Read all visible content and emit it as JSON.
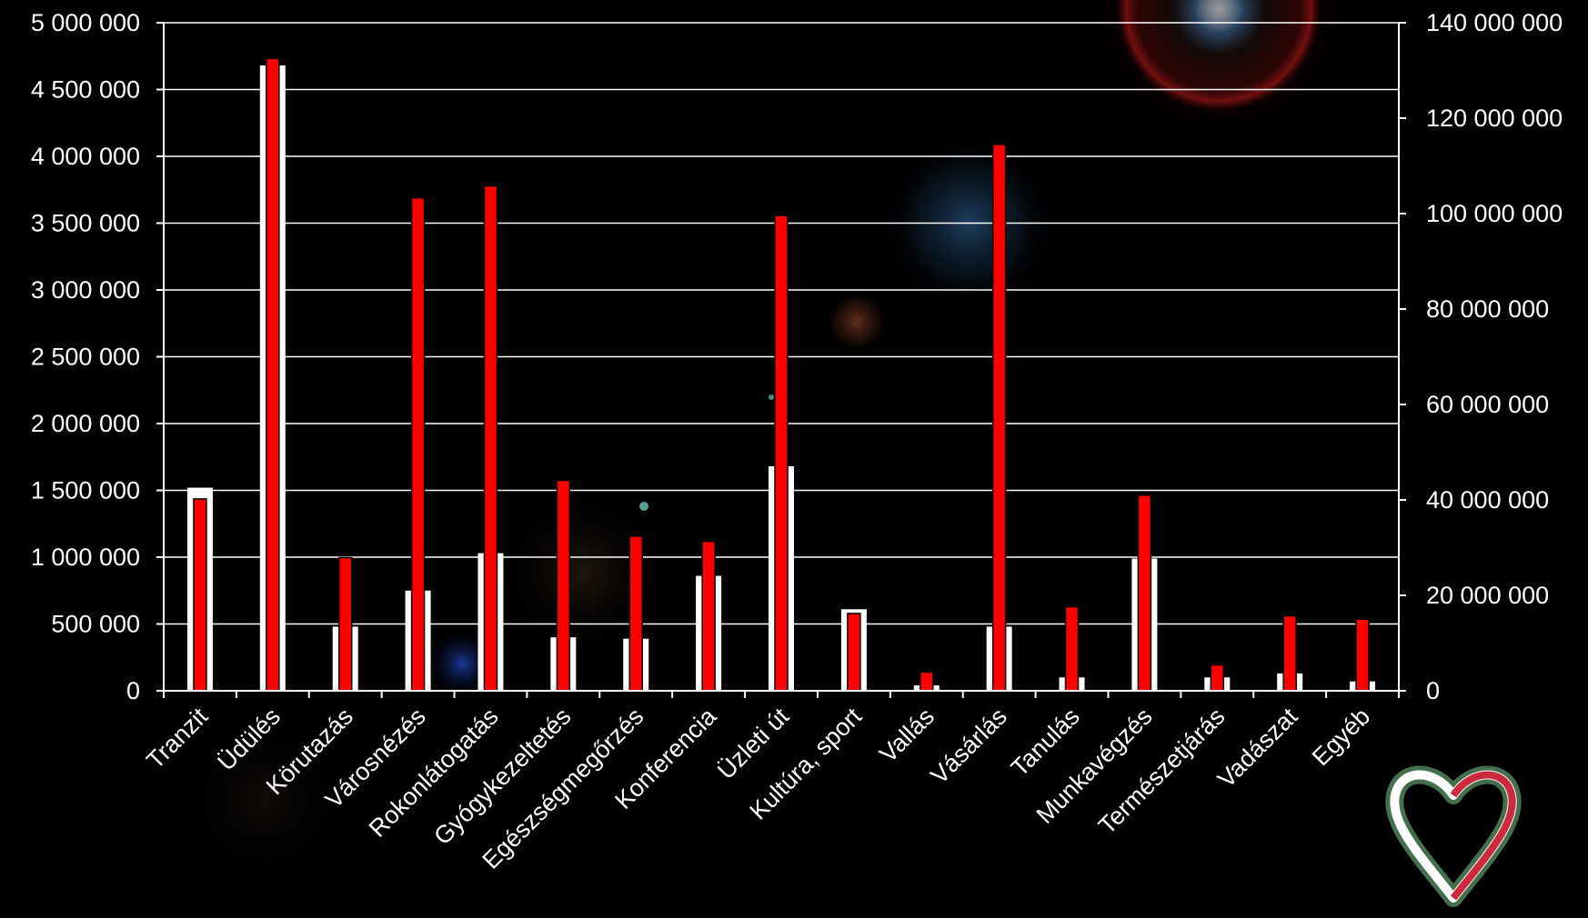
{
  "chart_data": {
    "type": "bar",
    "categories": [
      "Tranzit",
      "Üdülés",
      "Körutazás",
      "Városnézés",
      "Rokonlátogatás",
      "Gyógykezeltetés",
      "Egészségmegőrzés",
      "Konferencia",
      "Üzleti út",
      "Kultúra, sport",
      "Vallás",
      "Vásárlás",
      "Tanulás",
      "Munkavégzés",
      "Természetjárás",
      "Vadászat",
      "Egyéb"
    ],
    "series": [
      {
        "axis": "left",
        "color": "#ffffff",
        "values": [
          1520000,
          4680000,
          480000,
          750000,
          1030000,
          400000,
          390000,
          860000,
          1680000,
          610000,
          40000,
          480000,
          100000,
          990000,
          100000,
          130000,
          70000
        ]
      },
      {
        "axis": "right",
        "color": "#ff0000",
        "values": [
          40200000,
          132500000,
          27900000,
          103300000,
          105800000,
          44100000,
          32400000,
          31300000,
          99600000,
          16200000,
          3900000,
          114500000,
          17600000,
          41000000,
          5400000,
          15700000,
          15000000
        ]
      }
    ],
    "y_left": {
      "min": 0,
      "max": 5000000,
      "step": 500000,
      "tick_labels": [
        "0",
        "500 000",
        "1 000 000",
        "1 500 000",
        "2 000 000",
        "2 500 000",
        "3 000 000",
        "3 500 000",
        "4 000 000",
        "4 500 000",
        "5 000 000"
      ]
    },
    "y_right": {
      "min": 0,
      "max": 140000000,
      "step": 20000000,
      "tick_labels": [
        "0",
        "20 000 000",
        "40 000 000",
        "60 000 000",
        "80 000 000",
        "100 000 000",
        "120 000 000",
        "140 000 000"
      ]
    },
    "grid": true,
    "title": "",
    "xlabel": "",
    "ylabel": ""
  },
  "colors": {
    "background": "#000000",
    "left_series": "#ffffff",
    "right_series": "#ff0000",
    "axis_text": "#ffffff",
    "grid": "#ffffff"
  },
  "logo": {
    "name": "heart-ribbon-logo",
    "colors": [
      "#cd2a3e",
      "#ffffff",
      "#436f4d"
    ]
  }
}
